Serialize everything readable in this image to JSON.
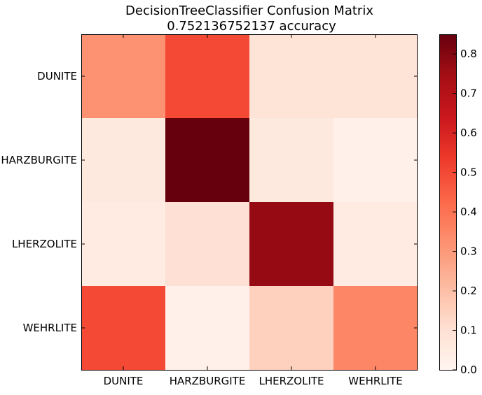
{
  "chart_data": {
    "type": "heatmap",
    "title": "DecisionTreeClassifier Confusion Matrix",
    "subtitle": "0.752136752137 accuracy",
    "row_labels": [
      "DUNITE",
      "HARZBURGITE",
      "LHERZOLITE",
      "WEHRLITE"
    ],
    "col_labels": [
      "DUNITE",
      "HARZBURGITE",
      "LHERZOLITE",
      "WEHRLITE"
    ],
    "values": [
      [
        0.32,
        0.5,
        0.09,
        0.09
      ],
      [
        0.06,
        0.85,
        0.06,
        0.02
      ],
      [
        0.05,
        0.1,
        0.77,
        0.05
      ],
      [
        0.5,
        0.02,
        0.15,
        0.35
      ]
    ],
    "colorbar": {
      "min": 0.0,
      "max": 0.85,
      "ticks": [
        "0.0",
        "0.1",
        "0.2",
        "0.3",
        "0.4",
        "0.5",
        "0.6",
        "0.7",
        "0.8"
      ],
      "colormap": "Reds"
    }
  }
}
